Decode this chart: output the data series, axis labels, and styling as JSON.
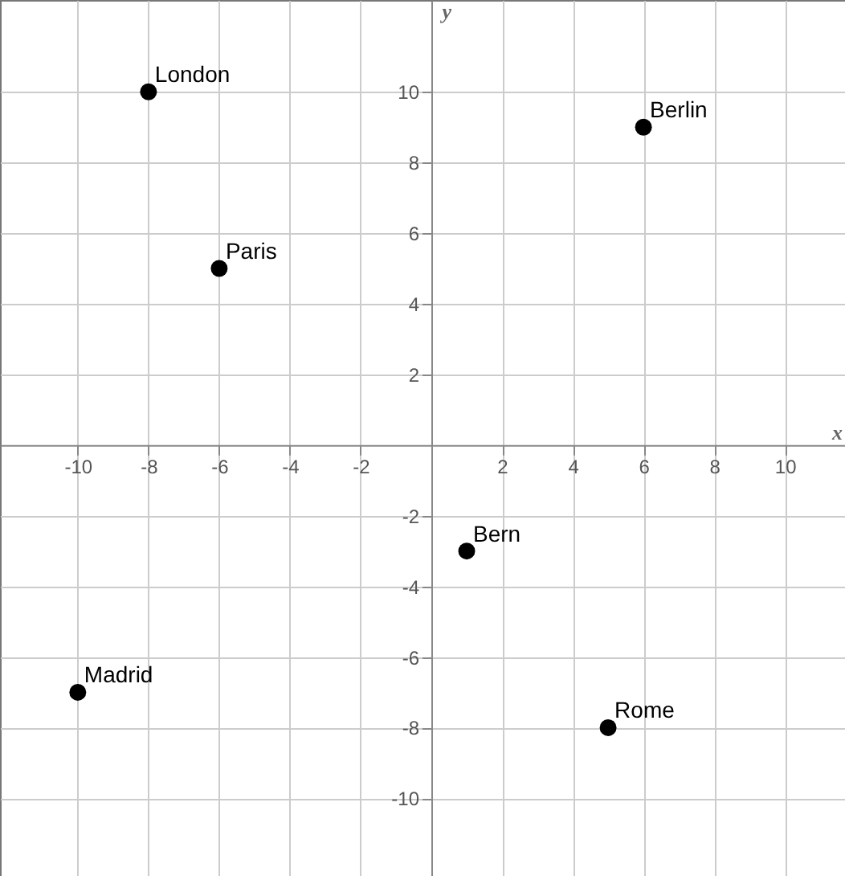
{
  "chart_data": {
    "type": "scatter",
    "xlabel": "x",
    "ylabel": "y",
    "xlim": [
      -12.2,
      11.7
    ],
    "ylim": [
      -12.2,
      12.6
    ],
    "xticks": [
      -10,
      -8,
      -6,
      -4,
      -2,
      2,
      4,
      6,
      8,
      10
    ],
    "yticks": [
      -10,
      -8,
      -6,
      -4,
      -2,
      2,
      4,
      6,
      8,
      10
    ],
    "grid": true,
    "legend": false,
    "marker": "circle",
    "series": [
      {
        "color": "#000000",
        "x": [
          -8,
          6,
          -6,
          1,
          -10,
          5
        ],
        "values": [
          10,
          9,
          5,
          -3,
          -7,
          -8
        ]
      }
    ],
    "annotations": [
      {
        "text": "London",
        "x": -8,
        "y": 10
      },
      {
        "text": "Berlin",
        "x": 6,
        "y": 9
      },
      {
        "text": "Paris",
        "x": -6,
        "y": 5
      },
      {
        "text": "Bern",
        "x": 1,
        "y": -3
      },
      {
        "text": "Madrid",
        "x": -10,
        "y": -7
      },
      {
        "text": "Rome",
        "x": 5,
        "y": -8
      }
    ]
  }
}
